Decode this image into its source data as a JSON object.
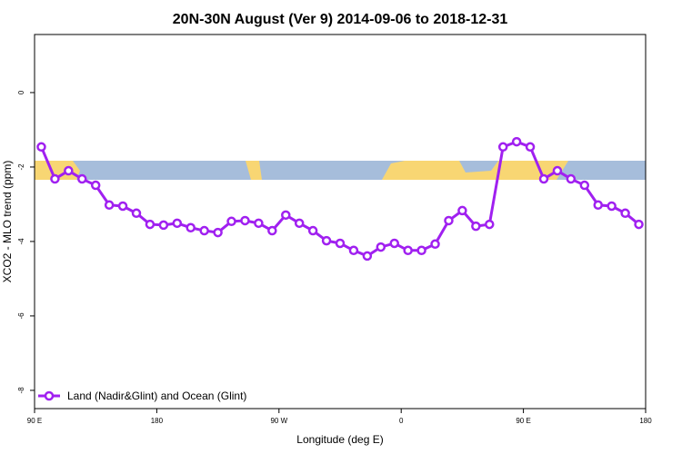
{
  "chart_data": {
    "type": "line",
    "title": "20N-30N August (Ver 9)   2014-09-06 to 2018-12-31",
    "x_label": "Longitude (deg E)",
    "y_label": "XCO2 - MLO trend (ppm)",
    "xlim": [
      90,
      540
    ],
    "ylim": [
      -8.49,
      1.56
    ],
    "xticks": [
      {
        "value": 90,
        "label": "90 E"
      },
      180,
      {
        "value": 270,
        "label": "90 W"
      },
      {
        "value": 360,
        "label": "0"
      },
      {
        "value": 450,
        "label": "90 E"
      },
      {
        "value": 540,
        "label": "180"
      }
    ],
    "yticks": [
      0,
      -2,
      -4,
      -6,
      -8
    ],
    "legend": "bottom-left",
    "x": [
      95,
      105,
      115,
      125,
      135,
      145,
      155,
      165,
      175,
      185,
      195,
      205,
      215,
      225,
      235,
      245,
      255,
      265,
      275,
      285,
      295,
      305,
      315,
      325,
      335,
      345,
      355,
      365,
      375,
      385,
      395,
      405,
      415,
      425,
      435,
      445,
      455,
      465,
      475,
      485,
      495,
      505,
      515,
      525,
      535
    ],
    "series": [
      {
        "name": "Land (Nadir&Glint) and Ocean (Glint)",
        "color": "#a020f0",
        "values": [
          -1.46,
          -2.32,
          -2.1,
          -2.32,
          -2.49,
          -3.02,
          -3.05,
          -3.24,
          -3.54,
          -3.56,
          -3.51,
          -3.63,
          -3.71,
          -3.76,
          -3.46,
          -3.44,
          -3.51,
          -3.71,
          -3.29,
          -3.51,
          -3.71,
          -3.98,
          -4.05,
          -4.24,
          -4.39,
          -4.15,
          -4.05,
          -4.24,
          -4.24,
          -4.07,
          -3.44,
          -3.17,
          -3.59,
          -3.54,
          -1.46,
          -1.32,
          -1.46,
          -2.32,
          -2.1,
          -2.32,
          -2.49,
          -3.02,
          -3.05,
          -3.24,
          -3.54
        ]
      }
    ]
  }
}
